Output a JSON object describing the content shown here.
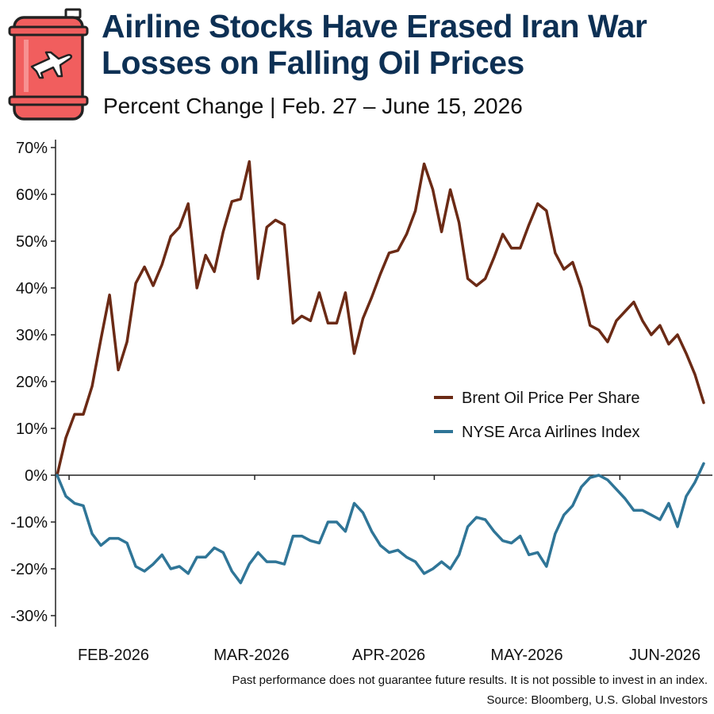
{
  "header": {
    "title_line1": "Airline Stocks Have Erased Iran War",
    "title_line2": "Losses on Falling Oil Prices",
    "subtitle": "Percent Change | Feb. 27 – June 15, 2026",
    "logo_icon": "oil-barrel-airplane-icon"
  },
  "footer": {
    "disclaimer": "Past performance does not guarantee future results. It is not possible to invest in an index.",
    "source": "Source: Bloomberg, U.S. Global Investors"
  },
  "colors": {
    "brent": "#6b2a15",
    "airlines": "#2f7597",
    "title": "#0d3054",
    "barrel": "#f15e5e"
  },
  "chart_data": {
    "type": "line",
    "title": "Airline Stocks Have Erased Iran War Losses on Falling Oil Prices",
    "subtitle": "Percent Change | Feb. 27 – June 15, 2026",
    "ylim": [
      -30,
      70
    ],
    "yticks": [
      "70%",
      "60%",
      "50%",
      "40%",
      "30%",
      "20%",
      "10%",
      "0%",
      "-10%",
      "-20%",
      "-30%"
    ],
    "ytick_values": [
      70,
      60,
      50,
      40,
      30,
      20,
      10,
      0,
      -10,
      -20,
      -30
    ],
    "xticks": [
      "FEB-2026",
      "MAR-2026",
      "APR-2026",
      "MAY-2026",
      "JUN-2026"
    ],
    "x_start": "2026-02-27",
    "x_end": "2026-06-15",
    "grid": false,
    "legend_position": "center-right",
    "series": [
      {
        "name": "Brent Oil Price Per Share",
        "color": "#6b2a15",
        "values": [
          0,
          8,
          13,
          13,
          19,
          29,
          38.5,
          22.5,
          28.5,
          41,
          44.5,
          40.5,
          45,
          51,
          53,
          58,
          40,
          47,
          43.5,
          52,
          58.5,
          59,
          67,
          42,
          53,
          54.5,
          53.5,
          32.5,
          34,
          33,
          39,
          32.5,
          32.5,
          39,
          26,
          33.5,
          38,
          43,
          47.5,
          48,
          51.5,
          56.5,
          66.5,
          61,
          52,
          61,
          54,
          42,
          40.5,
          42,
          46.5,
          51.5,
          48.5,
          48.5,
          53.5,
          58,
          56.5,
          47.5,
          44,
          45.5,
          40,
          32,
          31,
          28.5,
          33,
          35,
          37,
          33,
          30,
          32,
          28,
          30,
          26,
          21.5,
          15.5
        ]
      },
      {
        "name": "NYSE Arca Airlines Index",
        "color": "#2f7597",
        "values": [
          0,
          -4.5,
          -6,
          -6.5,
          -12.5,
          -15,
          -13.5,
          -13.5,
          -14.5,
          -19.5,
          -20.5,
          -19,
          -17,
          -20,
          -19.5,
          -21,
          -17.5,
          -17.5,
          -15.5,
          -16.5,
          -20.5,
          -23,
          -19,
          -16.5,
          -18.5,
          -18.5,
          -19,
          -13,
          -13,
          -14,
          -14.5,
          -10,
          -10,
          -12,
          -6,
          -8,
          -12,
          -15,
          -16.5,
          -16,
          -17.5,
          -18.5,
          -21,
          -20,
          -18.5,
          -20,
          -17,
          -11,
          -9,
          -9.5,
          -12,
          -14,
          -14.5,
          -13,
          -17,
          -16.5,
          -19.5,
          -12.5,
          -8.5,
          -6.5,
          -2.5,
          -0.5,
          0,
          -1,
          -3,
          -5,
          -7.5,
          -7.5,
          -8.5,
          -9.5,
          -6,
          -11,
          -4.5,
          -1.5,
          2.5
        ]
      }
    ]
  }
}
